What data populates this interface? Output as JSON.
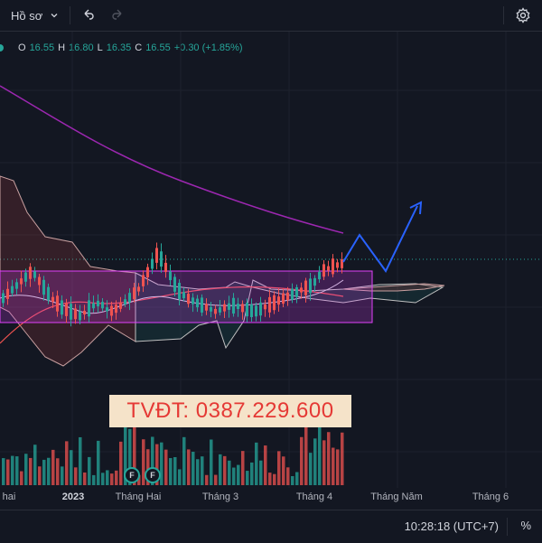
{
  "toolbar": {
    "layout_label": "Hồ sơ",
    "icons": [
      "chevron-down-icon",
      "undo-icon",
      "redo-icon",
      "gear-icon"
    ]
  },
  "ohlc": {
    "o_label": "O",
    "o_value": "16.55",
    "h_label": "H",
    "h_value": "16.80",
    "l_label": "L",
    "l_value": "16.35",
    "c_label": "C",
    "c_value": "16.55",
    "change": "+0.30 (+1.85%)"
  },
  "watermark": "TVĐT: 0387.229.600",
  "events": [
    {
      "label": "F"
    },
    {
      "label": "F"
    }
  ],
  "time_axis": {
    "labels": [
      "hai",
      "2023",
      "Tháng Hai",
      "Tháng 3",
      "Tháng 4",
      "Tháng Năm",
      "Tháng 6"
    ]
  },
  "status": {
    "clock": "10:28:18 (UTC+7)",
    "scale": "%"
  },
  "colors": {
    "up": "#26a69a",
    "down": "#ef5350",
    "background": "#131722",
    "ma": "#9c27b0",
    "forecast": "#2962ff",
    "box": "#e040fb"
  }
}
